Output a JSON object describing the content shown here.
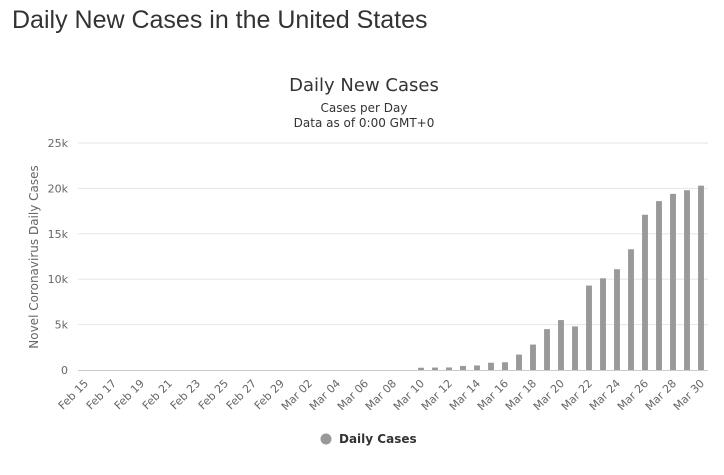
{
  "page": {
    "heading": "Daily New Cases in the United States"
  },
  "chart_data": {
    "type": "bar",
    "title": "Daily New Cases",
    "subtitle": "Cases per Day",
    "subtitle2": "Data as of 0:00 GMT+0",
    "ylabel": "Novel Coronavirus Daily Cases",
    "xlabel": "",
    "ylim": [
      0,
      25000
    ],
    "yticks": [
      0,
      5000,
      10000,
      15000,
      20000,
      25000
    ],
    "ytick_labels": [
      "0",
      "5k",
      "10k",
      "15k",
      "20k",
      "25k"
    ],
    "grid": true,
    "legend_position": "bottom-center",
    "bar_color": "#999999",
    "categories": [
      "Feb 15",
      "Feb 16",
      "Feb 17",
      "Feb 18",
      "Feb 19",
      "Feb 20",
      "Feb 21",
      "Feb 22",
      "Feb 23",
      "Feb 24",
      "Feb 25",
      "Feb 26",
      "Feb 27",
      "Feb 28",
      "Feb 29",
      "Mar 01",
      "Mar 02",
      "Mar 03",
      "Mar 04",
      "Mar 05",
      "Mar 06",
      "Mar 07",
      "Mar 08",
      "Mar 09",
      "Mar 10",
      "Mar 11",
      "Mar 12",
      "Mar 13",
      "Mar 14",
      "Mar 15",
      "Mar 16",
      "Mar 17",
      "Mar 18",
      "Mar 19",
      "Mar 20",
      "Mar 21",
      "Mar 22",
      "Mar 23",
      "Mar 24",
      "Mar 25",
      "Mar 26",
      "Mar 27",
      "Mar 28",
      "Mar 29",
      "Mar 30"
    ],
    "x_tick_labels": [
      "Feb 15",
      "Feb 17",
      "Feb 19",
      "Feb 21",
      "Feb 23",
      "Feb 25",
      "Feb 27",
      "Feb 29",
      "Mar 02",
      "Mar 04",
      "Mar 06",
      "Mar 08",
      "Mar 10",
      "Mar 12",
      "Mar 14",
      "Mar 16",
      "Mar 18",
      "Mar 20",
      "Mar 22",
      "Mar 24",
      "Mar 26",
      "Mar 28",
      "Mar 30"
    ],
    "series": [
      {
        "name": "Daily Cases",
        "values": [
          0,
          0,
          0,
          0,
          0,
          0,
          0,
          0,
          0,
          0,
          0,
          0,
          0,
          0,
          0,
          0,
          0,
          0,
          0,
          0,
          0,
          0,
          0,
          0,
          250,
          270,
          280,
          450,
          500,
          800,
          850,
          1700,
          2800,
          4500,
          5500,
          4800,
          9300,
          10100,
          11100,
          13300,
          17100,
          18600,
          19400,
          19800,
          20300
        ]
      }
    ]
  }
}
